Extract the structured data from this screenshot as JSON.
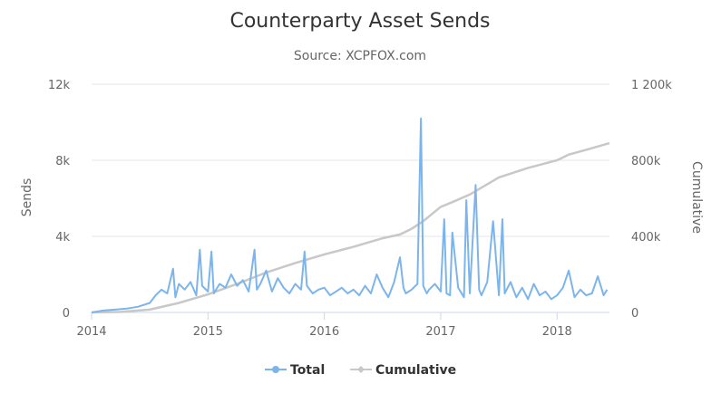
{
  "chart_data": {
    "type": "line",
    "title": "Counterparty Asset Sends",
    "subtitle": "Source: XCPFOX.com",
    "ylabel_left": "Sends",
    "ylabel_right": "Cumulative",
    "xlim": [
      2014.0,
      2018.45
    ],
    "ylim_left": [
      0,
      12000
    ],
    "ylim_right": [
      0,
      1200000
    ],
    "x_ticks": [
      2014,
      2015,
      2016,
      2017,
      2018
    ],
    "x_tick_labels": [
      "2014",
      "2015",
      "2016",
      "2017",
      "2018"
    ],
    "y_left_ticks": [
      0,
      4000,
      8000,
      12000
    ],
    "y_left_tick_labels": [
      "0",
      "4k",
      "8k",
      "12k"
    ],
    "y_right_ticks": [
      0,
      400000,
      800000,
      1200000
    ],
    "y_right_tick_labels": [
      "0",
      "400k",
      "800k",
      "1 200k"
    ],
    "grid": true,
    "legend_position": "bottom-center",
    "series": [
      {
        "name": "Total",
        "axis": "left",
        "color": "#7cb5ec",
        "x": [
          2014.0,
          2014.1,
          2014.2,
          2014.3,
          2014.4,
          2014.5,
          2014.55,
          2014.6,
          2014.65,
          2014.7,
          2014.72,
          2014.75,
          2014.8,
          2014.85,
          2014.9,
          2014.93,
          2014.95,
          2015.0,
          2015.03,
          2015.05,
          2015.1,
          2015.15,
          2015.2,
          2015.25,
          2015.3,
          2015.35,
          2015.4,
          2015.42,
          2015.45,
          2015.5,
          2015.55,
          2015.6,
          2015.65,
          2015.7,
          2015.75,
          2015.8,
          2015.83,
          2015.85,
          2015.9,
          2015.95,
          2016.0,
          2016.05,
          2016.1,
          2016.15,
          2016.2,
          2016.25,
          2016.3,
          2016.35,
          2016.4,
          2016.45,
          2016.5,
          2016.55,
          2016.6,
          2016.65,
          2016.68,
          2016.7,
          2016.75,
          2016.8,
          2016.83,
          2016.85,
          2016.88,
          2016.9,
          2016.95,
          2017.0,
          2017.03,
          2017.05,
          2017.08,
          2017.1,
          2017.15,
          2017.2,
          2017.22,
          2017.25,
          2017.3,
          2017.33,
          2017.35,
          2017.4,
          2017.45,
          2017.5,
          2017.53,
          2017.55,
          2017.6,
          2017.65,
          2017.7,
          2017.75,
          2017.8,
          2017.85,
          2017.9,
          2017.95,
          2018.0,
          2018.05,
          2018.1,
          2018.15,
          2018.2,
          2018.25,
          2018.3,
          2018.35,
          2018.4,
          2018.43
        ],
        "values": [
          0,
          100,
          150,
          200,
          300,
          500,
          900,
          1200,
          1000,
          2300,
          800,
          1500,
          1200,
          1600,
          900,
          3300,
          1400,
          1100,
          3200,
          1000,
          1500,
          1300,
          2000,
          1400,
          1700,
          1100,
          3300,
          1200,
          1500,
          2200,
          1100,
          1800,
          1300,
          1000,
          1500,
          1200,
          3200,
          1400,
          1000,
          1200,
          1300,
          900,
          1100,
          1300,
          1000,
          1200,
          900,
          1400,
          1000,
          2000,
          1300,
          800,
          1600,
          2900,
          1300,
          1000,
          1200,
          1500,
          10200,
          1400,
          1000,
          1200,
          1500,
          1100,
          4900,
          1000,
          900,
          4200,
          1300,
          800,
          5900,
          1000,
          6700,
          1200,
          900,
          1600,
          4800,
          900,
          4900,
          1000,
          1600,
          800,
          1300,
          700,
          1500,
          900,
          1100,
          700,
          900,
          1300,
          2200,
          800,
          1200,
          900,
          1000,
          1900,
          900,
          1200
        ]
      },
      {
        "name": "Cumulative",
        "axis": "right",
        "color": "#c8c8c8",
        "x": [
          2014.0,
          2014.25,
          2014.5,
          2014.75,
          2015.0,
          2015.25,
          2015.5,
          2015.75,
          2016.0,
          2016.25,
          2016.5,
          2016.65,
          2016.75,
          2016.85,
          2016.9,
          2017.0,
          2017.1,
          2017.25,
          2017.5,
          2017.75,
          2018.0,
          2018.1,
          2018.25,
          2018.45
        ],
        "values": [
          0,
          3000,
          15000,
          50000,
          95000,
          150000,
          210000,
          260000,
          305000,
          345000,
          390000,
          410000,
          440000,
          480000,
          505000,
          555000,
          580000,
          620000,
          710000,
          760000,
          800000,
          830000,
          855000,
          890000
        ]
      }
    ]
  }
}
